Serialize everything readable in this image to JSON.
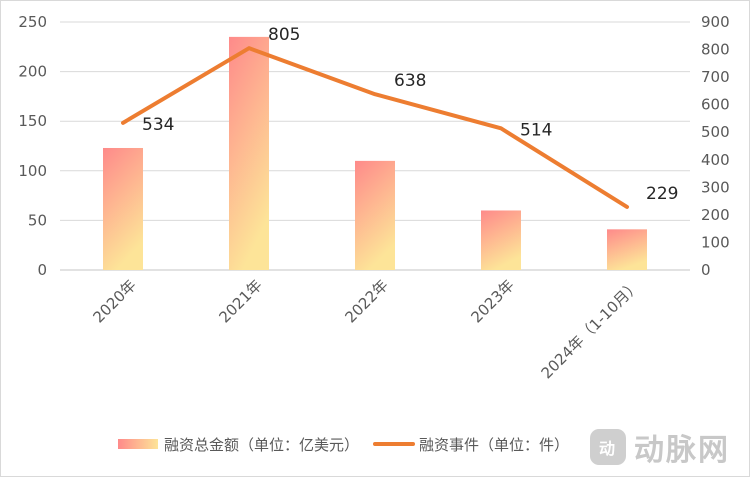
{
  "chart_data": {
    "type": "bar+line",
    "title": "",
    "categories": [
      "2020年",
      "2021年",
      "2022年",
      "2023年",
      "2024年（1-10月）"
    ],
    "series": [
      {
        "name": "融资总金额（单位：亿美元）",
        "type": "bar",
        "axis": "left",
        "values": [
          123,
          235,
          110,
          60,
          41
        ],
        "color_top": "#fe8a8a",
        "color_bottom": "#fde498"
      },
      {
        "name": "融资事件（单位：件）",
        "type": "line",
        "axis": "right",
        "values": [
          534,
          805,
          638,
          514,
          229
        ],
        "data_labels": [
          "534",
          "805",
          "638",
          "514",
          "229"
        ],
        "color": "#ed7d31"
      }
    ],
    "left_axis": {
      "ylim": [
        0,
        250
      ],
      "ticks": [
        "0",
        "50",
        "100",
        "150",
        "200",
        "250"
      ]
    },
    "right_axis": {
      "ylim": [
        0,
        900
      ],
      "ticks": [
        "0",
        "100",
        "200",
        "300",
        "400",
        "500",
        "600",
        "700",
        "800",
        "900"
      ]
    },
    "grid": true,
    "legend_position": "bottom",
    "xlabel": "",
    "ylabel": ""
  },
  "legend": {
    "bar_label": "融资总金额（单位：亿美元）",
    "line_label": "融资事件（单位：件）"
  },
  "watermark": {
    "text": "动脉网",
    "badge": "动"
  }
}
